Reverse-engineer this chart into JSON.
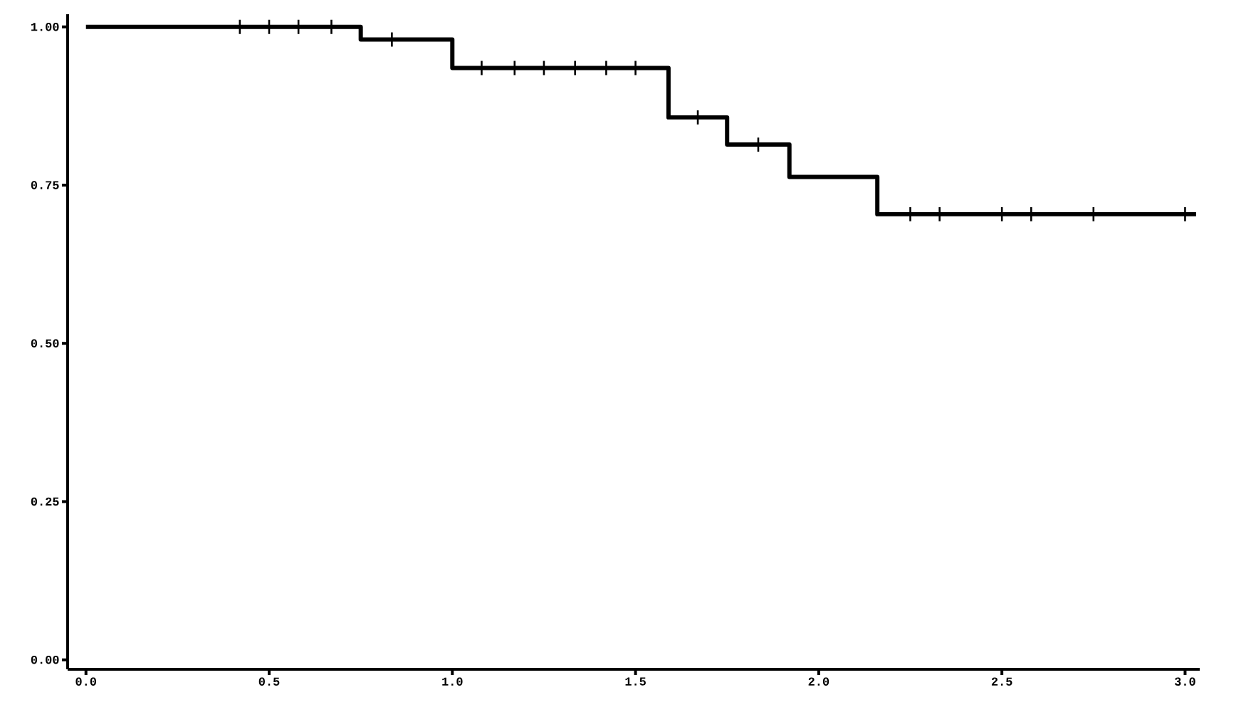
{
  "chart_data": {
    "type": "step",
    "x": [
      0,
      0.75,
      1.0,
      1.59,
      1.75,
      1.92,
      2.16,
      3.03
    ],
    "series": [
      {
        "color": "#000000",
        "values": [
          1.0,
          0.98,
          0.935,
          0.857,
          0.814,
          0.763,
          0.704,
          0.704
        ]
      },
      {
        "type": "scatter",
        "color": "#000000",
        "marker": "cross",
        "x": [
          0.42,
          0.5,
          0.58,
          0.67,
          0.835,
          1.08,
          1.17,
          1.25,
          1.335,
          1.42,
          1.5,
          1.67,
          1.835,
          2.25,
          2.33,
          2.5,
          2.58,
          2.75,
          3.0
        ],
        "values": [
          1.0,
          1.0,
          1.0,
          1.0,
          0.98,
          0.935,
          0.935,
          0.935,
          0.935,
          0.935,
          0.935,
          0.857,
          0.814,
          0.704,
          0.704,
          0.704,
          0.704,
          0.704,
          0.704
        ]
      }
    ],
    "xlim": [
      -0.05,
      3.04
    ],
    "ylim": [
      -0.015,
      1.02
    ],
    "xticks": [
      {
        "value": 0,
        "label": "0.0"
      },
      {
        "value": 0.5,
        "label": "0.5"
      },
      {
        "value": 1,
        "label": "1.0"
      },
      {
        "value": 1.5,
        "label": "1.5"
      },
      {
        "value": 2,
        "label": "2.0"
      },
      {
        "value": 2.5,
        "label": "2.5"
      },
      {
        "value": 3,
        "label": "3.0"
      }
    ],
    "yticks": [
      {
        "value": 0,
        "label": "0.00"
      },
      {
        "value": 0.25,
        "label": "0.25"
      },
      {
        "value": 0.5,
        "label": "0.50"
      },
      {
        "value": 0.75,
        "label": "0.75"
      },
      {
        "value": 1,
        "label": "1.00"
      }
    ],
    "grid": false
  }
}
